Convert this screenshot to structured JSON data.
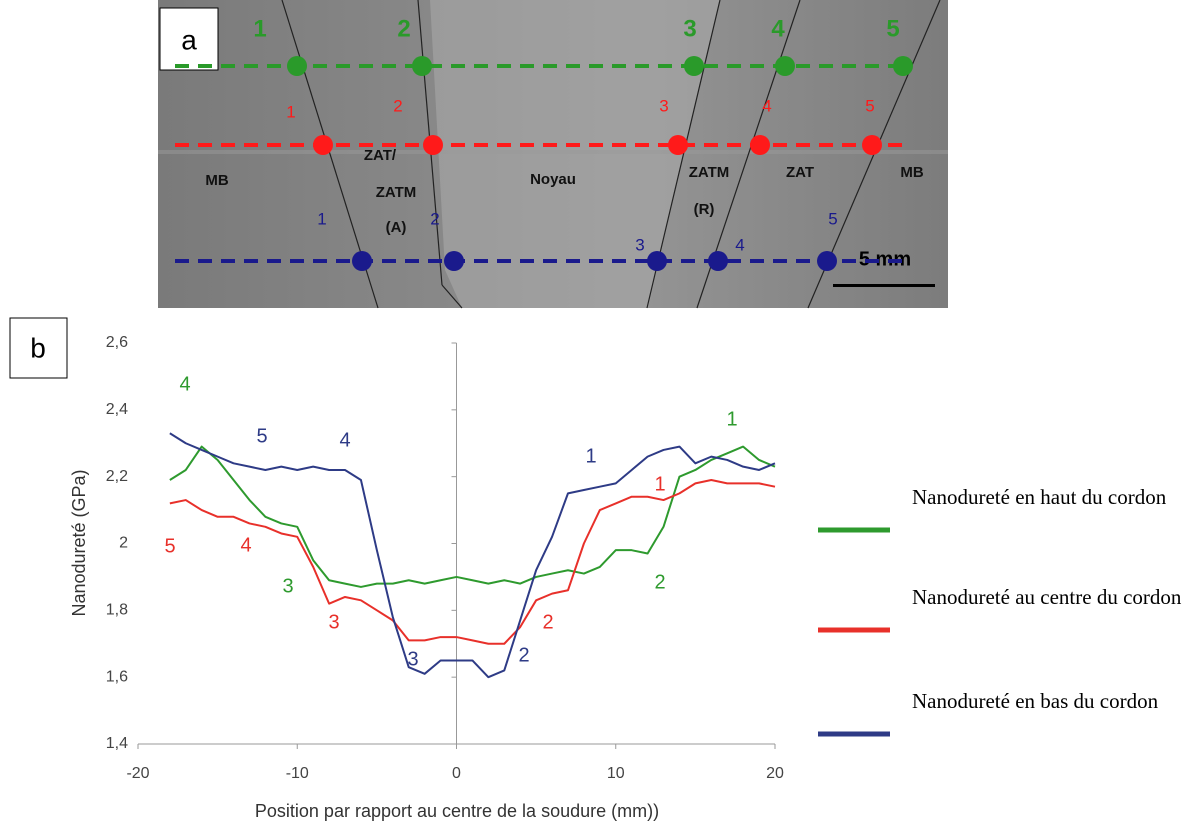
{
  "panel_a": {
    "label": "a",
    "rows": [
      {
        "color": "#2a9a2a",
        "labels": [
          "1",
          "2",
          "3",
          "4",
          "5"
        ]
      },
      {
        "color": "#ff1a1a",
        "labels": [
          "1",
          "2",
          "3",
          "4",
          "5"
        ]
      },
      {
        "color": "#1a1a8c",
        "labels": [
          "1",
          "2",
          "3",
          "4",
          "5"
        ]
      }
    ],
    "zones": [
      "MB",
      "ZAT/",
      "ZATM",
      "(A)",
      "Noyau",
      "ZATM",
      "(R)",
      "ZAT",
      "MB"
    ],
    "scale": "5 mm"
  },
  "panel_b_label": "b",
  "chart_data": {
    "type": "line",
    "x_label": "Position par rapport au centre de la soudure (mm))",
    "y_label": "Nanodureté (GPa)",
    "x": [
      -18,
      -17,
      -16,
      -15,
      -14,
      -13,
      -12,
      -11,
      -10,
      -9,
      -8,
      -7,
      -6,
      -5,
      -4,
      -3,
      -2,
      -1,
      0,
      1,
      2,
      3,
      4,
      5,
      6,
      7,
      8,
      9,
      10,
      11,
      12,
      13,
      14,
      15,
      16,
      17,
      18,
      19,
      20
    ],
    "series": [
      {
        "name": "Nanodureté en haut du cordon",
        "color": "#2e9a2e",
        "labels": [
          "4",
          "3",
          "2",
          "1"
        ],
        "values": [
          2.19,
          2.22,
          2.29,
          2.25,
          2.19,
          2.13,
          2.08,
          2.06,
          2.05,
          1.95,
          1.89,
          1.88,
          1.87,
          1.88,
          1.88,
          1.89,
          1.88,
          1.89,
          1.9,
          1.89,
          1.88,
          1.89,
          1.88,
          1.9,
          1.91,
          1.92,
          1.91,
          1.93,
          1.98,
          1.98,
          1.97,
          2.05,
          2.2,
          2.22,
          2.25,
          2.27,
          2.29,
          2.25,
          2.23
        ]
      },
      {
        "name": "Nanodureté au centre du cordon",
        "color": "#e8302a",
        "labels": [
          "5",
          "4",
          "3",
          "2",
          "1"
        ],
        "values": [
          2.12,
          2.13,
          2.1,
          2.08,
          2.08,
          2.06,
          2.05,
          2.03,
          2.02,
          1.93,
          1.82,
          1.84,
          1.83,
          1.8,
          1.77,
          1.71,
          1.71,
          1.72,
          1.72,
          1.71,
          1.7,
          1.7,
          1.75,
          1.83,
          1.85,
          1.86,
          2.0,
          2.1,
          2.12,
          2.14,
          2.14,
          2.13,
          2.15,
          2.18,
          2.19,
          2.18,
          2.18,
          2.18,
          2.17
        ]
      },
      {
        "name": "Nanodureté en bas du cordon",
        "color": "#2e3b86",
        "labels": [
          "5",
          "4",
          "3",
          "2",
          "1"
        ],
        "values": [
          2.33,
          2.3,
          2.28,
          2.26,
          2.24,
          2.23,
          2.22,
          2.23,
          2.22,
          2.23,
          2.22,
          2.22,
          2.19,
          1.98,
          1.78,
          1.63,
          1.61,
          1.65,
          1.65,
          1.65,
          1.6,
          1.62,
          1.77,
          1.92,
          2.02,
          2.15,
          2.16,
          2.17,
          2.18,
          2.22,
          2.26,
          2.28,
          2.29,
          2.24,
          2.26,
          2.25,
          2.23,
          2.22,
          2.24
        ]
      }
    ],
    "xlim": [
      -20,
      20
    ],
    "xticks": [
      -20,
      -10,
      0,
      10,
      20
    ],
    "ylim": [
      1.4,
      2.6
    ],
    "yticks": [
      {
        "value": 1.4,
        "label": "1,4"
      },
      {
        "value": 1.6,
        "label": "1,6"
      },
      {
        "value": 1.8,
        "label": "1,8"
      },
      2,
      {
        "value": 2.2,
        "label": "2,2"
      },
      {
        "value": 2.4,
        "label": "2,4"
      },
      {
        "value": 2.6,
        "label": "2,6"
      }
    ],
    "legend": "right"
  }
}
